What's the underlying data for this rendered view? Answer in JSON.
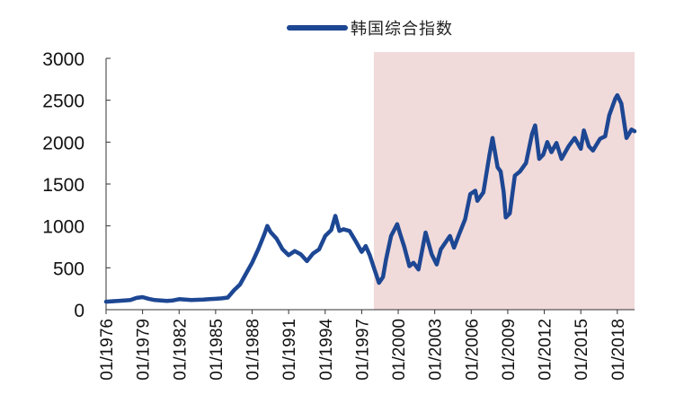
{
  "chart_data": {
    "type": "line",
    "title": "",
    "xlabel": "",
    "ylabel": "",
    "ylim": [
      0,
      3000
    ],
    "xlim": [
      "1976-01",
      "2019-06"
    ],
    "yticks": [
      0,
      500,
      1000,
      1500,
      2000,
      2500,
      3000
    ],
    "xticks": [
      "01/1976",
      "01/1979",
      "01/1982",
      "01/1985",
      "01/1988",
      "01/1991",
      "01/1994",
      "01/1997",
      "01/2000",
      "01/2003",
      "01/2006",
      "01/2009",
      "01/2012",
      "01/2015",
      "01/2018"
    ],
    "grid": false,
    "legend_position": "top-center",
    "line_color": "#1d4793",
    "shaded_region": {
      "start": "1998-01",
      "end": "2019-06",
      "color": "#f1dada"
    },
    "series": [
      {
        "name": "韩国综合指数",
        "points": [
          [
            "1976-01",
            95
          ],
          [
            "1977-01",
            105
          ],
          [
            "1978-01",
            115
          ],
          [
            "1978-07",
            140
          ],
          [
            "1979-01",
            150
          ],
          [
            "1979-07",
            130
          ],
          [
            "1980-01",
            115
          ],
          [
            "1980-07",
            110
          ],
          [
            "1981-01",
            105
          ],
          [
            "1981-07",
            110
          ],
          [
            "1982-01",
            125
          ],
          [
            "1982-07",
            120
          ],
          [
            "1983-01",
            115
          ],
          [
            "1983-07",
            118
          ],
          [
            "1984-01",
            120
          ],
          [
            "1984-07",
            125
          ],
          [
            "1985-01",
            130
          ],
          [
            "1985-07",
            135
          ],
          [
            "1986-01",
            145
          ],
          [
            "1986-07",
            230
          ],
          [
            "1987-01",
            300
          ],
          [
            "1987-07",
            430
          ],
          [
            "1988-01",
            560
          ],
          [
            "1988-07",
            720
          ],
          [
            "1989-01",
            900
          ],
          [
            "1989-04",
            1000
          ],
          [
            "1989-07",
            930
          ],
          [
            "1990-01",
            850
          ],
          [
            "1990-07",
            720
          ],
          [
            "1991-01",
            650
          ],
          [
            "1991-07",
            700
          ],
          [
            "1992-01",
            660
          ],
          [
            "1992-07",
            580
          ],
          [
            "1993-01",
            670
          ],
          [
            "1993-07",
            720
          ],
          [
            "1994-01",
            880
          ],
          [
            "1994-07",
            950
          ],
          [
            "1994-11",
            1120
          ],
          [
            "1995-03",
            940
          ],
          [
            "1995-07",
            960
          ],
          [
            "1996-01",
            940
          ],
          [
            "1996-07",
            820
          ],
          [
            "1997-01",
            690
          ],
          [
            "1997-05",
            760
          ],
          [
            "1997-09",
            650
          ],
          [
            "1998-01",
            500
          ],
          [
            "1998-06",
            320
          ],
          [
            "1998-10",
            390
          ],
          [
            "1999-01",
            600
          ],
          [
            "1999-06",
            880
          ],
          [
            "1999-12",
            1020
          ],
          [
            "2000-03",
            900
          ],
          [
            "2000-07",
            750
          ],
          [
            "2000-12",
            520
          ],
          [
            "2001-04",
            560
          ],
          [
            "2001-09",
            480
          ],
          [
            "2002-04",
            920
          ],
          [
            "2002-10",
            660
          ],
          [
            "2003-03",
            540
          ],
          [
            "2003-07",
            720
          ],
          [
            "2004-04",
            880
          ],
          [
            "2004-08",
            740
          ],
          [
            "2005-01",
            900
          ],
          [
            "2005-07",
            1080
          ],
          [
            "2005-12",
            1380
          ],
          [
            "2006-05",
            1420
          ],
          [
            "2006-07",
            1300
          ],
          [
            "2007-01",
            1400
          ],
          [
            "2007-07",
            1850
          ],
          [
            "2007-10",
            2050
          ],
          [
            "2008-03",
            1700
          ],
          [
            "2008-06",
            1650
          ],
          [
            "2008-09",
            1400
          ],
          [
            "2008-11",
            1100
          ],
          [
            "2009-03",
            1150
          ],
          [
            "2009-08",
            1600
          ],
          [
            "2010-01",
            1650
          ],
          [
            "2010-07",
            1750
          ],
          [
            "2011-01",
            2100
          ],
          [
            "2011-04",
            2200
          ],
          [
            "2011-08",
            1800
          ],
          [
            "2011-12",
            1850
          ],
          [
            "2012-04",
            2000
          ],
          [
            "2012-08",
            1880
          ],
          [
            "2013-01",
            1990
          ],
          [
            "2013-06",
            1800
          ],
          [
            "2014-01",
            1950
          ],
          [
            "2014-07",
            2050
          ],
          [
            "2015-01",
            1920
          ],
          [
            "2015-04",
            2140
          ],
          [
            "2015-09",
            1950
          ],
          [
            "2016-01",
            1900
          ],
          [
            "2016-08",
            2040
          ],
          [
            "2017-01",
            2070
          ],
          [
            "2017-05",
            2320
          ],
          [
            "2017-11",
            2520
          ],
          [
            "2018-01",
            2560
          ],
          [
            "2018-05",
            2460
          ],
          [
            "2018-10",
            2050
          ],
          [
            "2019-03",
            2150
          ],
          [
            "2019-06",
            2130
          ]
        ]
      }
    ]
  }
}
